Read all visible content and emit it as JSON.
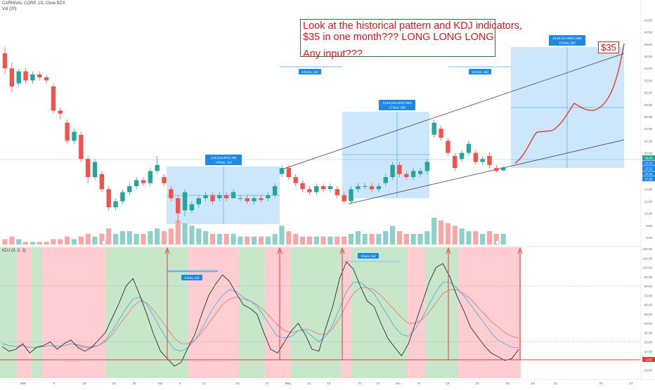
{
  "header": {
    "symbol_line": "CARNIVAL CORP, 1D, Cboe BZX",
    "volume_label": "Vol (20)",
    "kdj_label": "KDJ (9, 3, 3)"
  },
  "annotation": {
    "line1": "Look at the historical pattern and KDJ indicators,",
    "line2": "$35 in one month??? LONG LONG LONG",
    "line3": "Any input???"
  },
  "price_target_label": "$35",
  "box_labels": {
    "box1_top": "4.00 (115.60%) 400",
    "box1_bottom": "18 bars, 23d",
    "box2_top": "13.63 (115.20%) 1063",
    "box2_bottom": "17 bars, 26d",
    "box3_top": "19.26 (114.98%) 1985",
    "box3_bottom": "18 bars, 25d",
    "range1": "18 bars, 14d",
    "range2": "18 bars, 16d",
    "kdj_range1": "8 bars, 11d",
    "kdj_range2": "8 bars, 11d"
  },
  "colors": {
    "up": "#26a69a",
    "down": "#ef5350",
    "up_vol": "#8fd0c8",
    "down_vol": "#f6a8a6",
    "bg_green": "#c8e6c9",
    "bg_red": "#ffcdd2",
    "box_blue": "#bbdefb",
    "accent_red": "#e53935",
    "k_line": "#1a1a1a",
    "d_line": "#4fb0d8",
    "j_line": "#e57373"
  },
  "chart_data": {
    "type": "candlestick",
    "price_axis": {
      "labels": [
        "42.00",
        "40.00",
        "38.00",
        "36.00",
        "34.00",
        "32.00",
        "30.00",
        "28.00",
        "26.00",
        "24.00",
        "22.00",
        "20.00",
        "18.00",
        "16.00",
        "14.00",
        "12.00",
        "10.00",
        "8.00",
        "6.00"
      ],
      "current_price": "18.00",
      "price_badges": [
        "17.72",
        "17.11",
        "17.11",
        "17.55"
      ]
    },
    "kdj_axis": {
      "labels": [
        "120.00",
        "110.00",
        "100.00",
        "90.00",
        "80.00",
        "70.00",
        "60.00",
        "50.00",
        "40.00",
        "30.00",
        "20.00",
        "10.00",
        "0.00",
        "-10.00"
      ],
      "support_label": "-1.00"
    },
    "date_labels": [
      "Mar",
      "9",
      "16",
      "23",
      "26",
      "Apr",
      "6",
      "13",
      "20",
      "27",
      "May",
      "11",
      "18",
      "21",
      "27",
      "Jun",
      "8",
      "15",
      "22",
      "29",
      "Jul",
      "13",
      "20",
      "27"
    ],
    "candles": [
      {
        "o": 36.5,
        "c": 34.0,
        "h": 37.5,
        "l": 33.0
      },
      {
        "o": 34.0,
        "c": 31.0,
        "h": 35.0,
        "l": 30.0
      },
      {
        "o": 31.5,
        "c": 33.5,
        "h": 34.0,
        "l": 31.0
      },
      {
        "o": 33.5,
        "c": 32.0,
        "h": 34.0,
        "l": 31.5
      },
      {
        "o": 32.0,
        "c": 33.0,
        "h": 33.5,
        "l": 31.5
      },
      {
        "o": 33.0,
        "c": 32.5,
        "h": 33.5,
        "l": 32.0
      },
      {
        "o": 32.5,
        "c": 32.0,
        "h": 33.0,
        "l": 31.5
      },
      {
        "o": 31.0,
        "c": 27.0,
        "h": 31.5,
        "l": 26.5
      },
      {
        "o": 27.0,
        "c": 26.5,
        "h": 27.5,
        "l": 25.5
      },
      {
        "o": 25.0,
        "c": 22.0,
        "h": 25.5,
        "l": 21.5
      },
      {
        "o": 22.0,
        "c": 23.5,
        "h": 24.0,
        "l": 21.5
      },
      {
        "o": 23.0,
        "c": 19.0,
        "h": 23.5,
        "l": 18.5
      },
      {
        "o": 19.0,
        "c": 16.0,
        "h": 19.5,
        "l": 15.0
      },
      {
        "o": 16.0,
        "c": 18.5,
        "h": 19.0,
        "l": 15.5
      },
      {
        "o": 16.5,
        "c": 14.0,
        "h": 17.0,
        "l": 13.5
      },
      {
        "o": 14.0,
        "c": 11.0,
        "h": 14.5,
        "l": 10.5
      },
      {
        "o": 11.0,
        "c": 12.0,
        "h": 12.5,
        "l": 10.5
      },
      {
        "o": 12.0,
        "c": 13.5,
        "h": 14.0,
        "l": 11.5
      },
      {
        "o": 13.5,
        "c": 14.5,
        "h": 15.0,
        "l": 13.0
      },
      {
        "o": 14.5,
        "c": 15.5,
        "h": 16.0,
        "l": 14.0
      },
      {
        "o": 15.5,
        "c": 15.0,
        "h": 16.0,
        "l": 14.5
      },
      {
        "o": 15.0,
        "c": 17.0,
        "h": 17.5,
        "l": 14.5
      },
      {
        "o": 17.0,
        "c": 18.0,
        "h": 19.5,
        "l": 16.5
      },
      {
        "o": 16.0,
        "c": 15.0,
        "h": 16.5,
        "l": 14.5
      },
      {
        "o": 14.0,
        "c": 12.5,
        "h": 14.5,
        "l": 12.0
      },
      {
        "o": 12.5,
        "c": 10.0,
        "h": 13.0,
        "l": 8.5
      },
      {
        "o": 10.5,
        "c": 13.5,
        "h": 14.0,
        "l": 9.5
      },
      {
        "o": 10.5,
        "c": 11.5,
        "h": 12.0,
        "l": 10.0
      },
      {
        "o": 11.5,
        "c": 12.5,
        "h": 13.0,
        "l": 11.0
      },
      {
        "o": 12.5,
        "c": 13.0,
        "h": 13.5,
        "l": 12.0
      },
      {
        "o": 13.0,
        "c": 12.0,
        "h": 13.5,
        "l": 11.5
      },
      {
        "o": 12.5,
        "c": 13.0,
        "h": 13.5,
        "l": 12.0
      },
      {
        "o": 13.0,
        "c": 12.5,
        "h": 13.5,
        "l": 12.0
      },
      {
        "o": 12.5,
        "c": 13.5,
        "h": 14.0,
        "l": 12.5
      },
      {
        "o": 12.5,
        "c": 12.5,
        "h": 13.0,
        "l": 12.0
      },
      {
        "o": 12.5,
        "c": 12.0,
        "h": 13.0,
        "l": 11.5
      },
      {
        "o": 12.0,
        "c": 12.5,
        "h": 13.0,
        "l": 11.5
      },
      {
        "o": 12.5,
        "c": 12.2,
        "h": 13.0,
        "l": 11.8
      },
      {
        "o": 12.5,
        "c": 13.0,
        "h": 13.5,
        "l": 12.0
      },
      {
        "o": 13.0,
        "c": 14.5,
        "h": 15.0,
        "l": 12.5
      },
      {
        "o": 16.5,
        "c": 17.5,
        "h": 18.0,
        "l": 16.0
      },
      {
        "o": 17.5,
        "c": 16.0,
        "h": 18.0,
        "l": 15.5
      },
      {
        "o": 16.0,
        "c": 15.0,
        "h": 16.5,
        "l": 14.5
      },
      {
        "o": 15.0,
        "c": 14.0,
        "h": 15.5,
        "l": 13.5
      },
      {
        "o": 14.0,
        "c": 13.5,
        "h": 14.5,
        "l": 13.0
      },
      {
        "o": 13.5,
        "c": 14.5,
        "h": 15.0,
        "l": 13.0
      },
      {
        "o": 14.5,
        "c": 14.0,
        "h": 15.0,
        "l": 13.5
      },
      {
        "o": 14.0,
        "c": 14.5,
        "h": 15.0,
        "l": 13.5
      },
      {
        "o": 14.0,
        "c": 13.0,
        "h": 14.5,
        "l": 12.5
      },
      {
        "o": 13.0,
        "c": 12.0,
        "h": 13.5,
        "l": 11.5
      },
      {
        "o": 12.0,
        "c": 14.0,
        "h": 14.5,
        "l": 11.5
      },
      {
        "o": 14.0,
        "c": 14.5,
        "h": 15.0,
        "l": 13.5
      },
      {
        "o": 14.5,
        "c": 14.5,
        "h": 15.0,
        "l": 14.0
      },
      {
        "o": 14.5,
        "c": 14.0,
        "h": 15.0,
        "l": 13.5
      },
      {
        "o": 14.0,
        "c": 14.5,
        "h": 15.0,
        "l": 13.5
      },
      {
        "o": 15.0,
        "c": 16.0,
        "h": 16.5,
        "l": 14.5
      },
      {
        "o": 16.0,
        "c": 18.0,
        "h": 18.5,
        "l": 15.5
      },
      {
        "o": 18.0,
        "c": 16.5,
        "h": 18.5,
        "l": 16.0
      },
      {
        "o": 16.5,
        "c": 16.0,
        "h": 17.0,
        "l": 15.5
      },
      {
        "o": 16.0,
        "c": 17.0,
        "h": 17.5,
        "l": 15.5
      },
      {
        "o": 16.5,
        "c": 17.0,
        "h": 17.5,
        "l": 16.0
      },
      {
        "o": 17.0,
        "c": 18.5,
        "h": 19.0,
        "l": 16.5
      },
      {
        "o": 23.0,
        "c": 25.0,
        "h": 25.5,
        "l": 22.5
      },
      {
        "o": 24.0,
        "c": 22.5,
        "h": 24.5,
        "l": 22.0
      },
      {
        "o": 22.0,
        "c": 20.0,
        "h": 22.5,
        "l": 19.5
      },
      {
        "o": 19.5,
        "c": 17.5,
        "h": 20.0,
        "l": 17.0
      },
      {
        "o": 19.0,
        "c": 20.0,
        "h": 20.5,
        "l": 18.5
      },
      {
        "o": 20.0,
        "c": 21.5,
        "h": 22.0,
        "l": 19.5
      },
      {
        "o": 20.0,
        "c": 18.5,
        "h": 20.5,
        "l": 18.0
      },
      {
        "o": 18.5,
        "c": 19.0,
        "h": 19.5,
        "l": 18.0
      },
      {
        "o": 19.5,
        "c": 18.0,
        "h": 20.0,
        "l": 17.5
      },
      {
        "o": 17.5,
        "c": 17.0,
        "h": 18.0,
        "l": 16.8
      },
      {
        "o": 17.1,
        "c": 17.6,
        "h": 17.8,
        "l": 17.0
      }
    ],
    "volume": [
      2,
      3,
      2,
      1,
      1,
      1,
      1,
      2,
      2,
      3,
      2,
      3,
      4,
      3,
      4,
      6,
      4,
      5,
      5,
      4,
      4,
      5,
      6,
      5,
      6,
      9,
      8,
      7,
      6,
      5,
      4,
      4,
      4,
      4,
      3,
      3,
      3,
      3,
      3,
      4,
      7,
      5,
      4,
      3,
      3,
      3,
      3,
      3,
      3,
      3,
      4,
      5,
      4,
      4,
      4,
      5,
      7,
      5,
      4,
      4,
      4,
      5,
      10,
      9,
      8,
      7,
      6,
      5,
      5,
      4,
      5,
      4,
      4
    ],
    "kdj_background": [
      "green",
      "red",
      "green",
      "red",
      "red",
      "green",
      "green",
      "red",
      "red",
      "green",
      "red",
      "green",
      "red",
      "green",
      "red",
      "green",
      "red"
    ],
    "projection": "curved path from 17.5 to 35",
    "target": 35
  }
}
